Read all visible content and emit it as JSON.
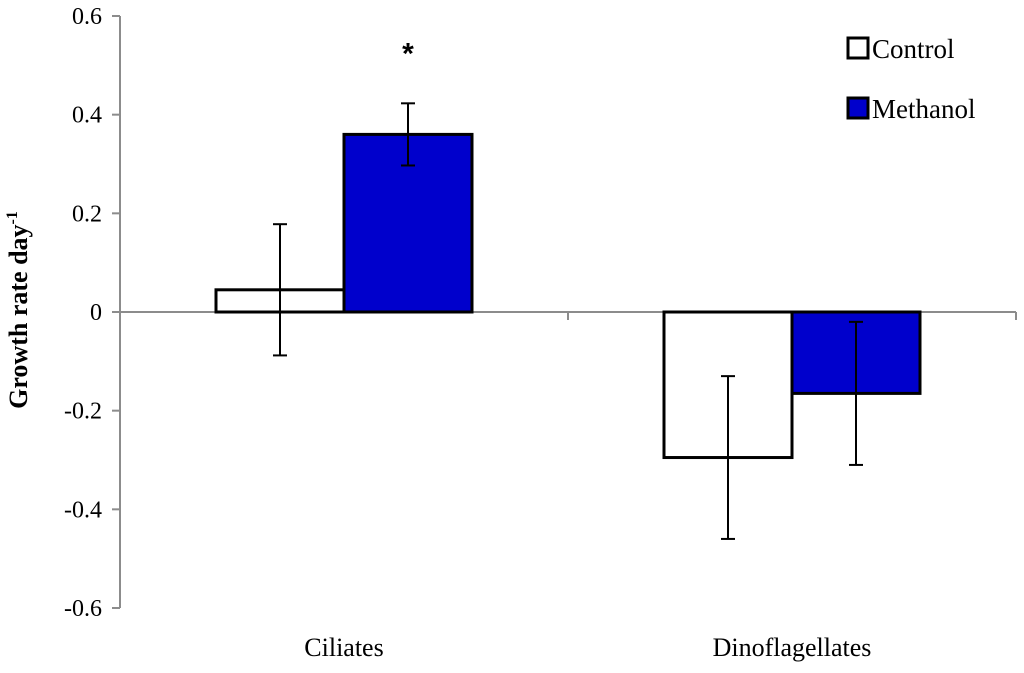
{
  "chart_data": {
    "type": "bar",
    "categories": [
      "Ciliates",
      "Dinoflagellates"
    ],
    "series": [
      {
        "name": "Control",
        "values": [
          0.045,
          -0.295
        ],
        "errors": [
          0.133,
          0.165
        ],
        "color": "#ffffff",
        "stroke": "#000000"
      },
      {
        "name": "Methanol",
        "values": [
          0.36,
          -0.165
        ],
        "errors": [
          0.063,
          0.145
        ],
        "color": "#0000cc",
        "stroke": "#000000"
      }
    ],
    "ylabel_main": "Growth  rate day",
    "ylabel_sup": "-1",
    "ylim": [
      -0.6,
      0.6
    ],
    "yticks": [
      0.6,
      0.4,
      0.2,
      0,
      -0.2,
      -0.4,
      -0.6
    ],
    "ytick_labels": [
      "0.6",
      "0.4",
      "0.2",
      "0",
      "-0.2",
      "-0.4",
      "-0.6"
    ],
    "annotations": [
      {
        "text": "*",
        "category": "Ciliates",
        "series": "Methanol"
      }
    ],
    "legend_position": "top-right",
    "grid": false
  }
}
